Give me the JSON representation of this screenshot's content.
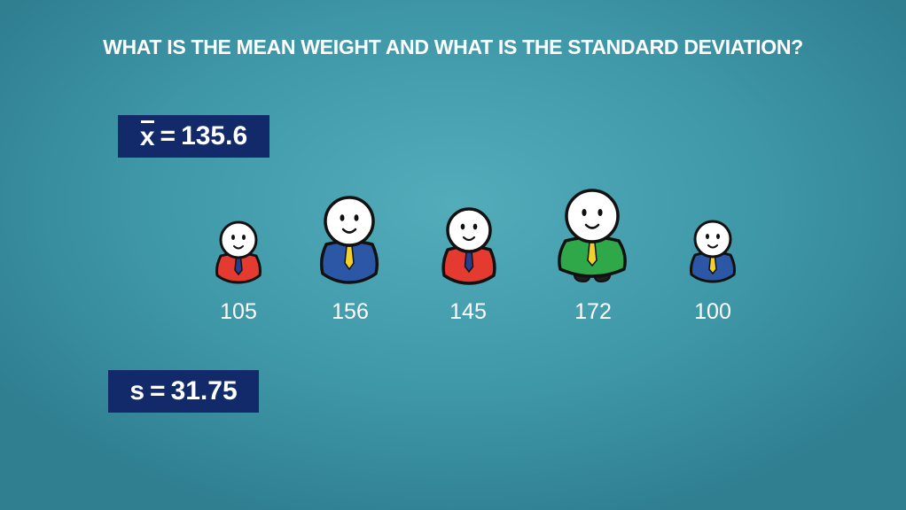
{
  "title": "WHAT IS THE MEAN WEIGHT AND WHAT IS THE STANDARD DEVIATION?",
  "mean": {
    "symbol": "x",
    "equals": "=",
    "value": "135.6"
  },
  "std_dev": {
    "symbol": "s",
    "equals": "=",
    "value": "31.75"
  },
  "people": [
    {
      "weight": "105",
      "shirt_color": "#e53a2f",
      "tie_color": "#2a3c8c"
    },
    {
      "weight": "156",
      "shirt_color": "#2c57a6",
      "tie_color": "#f2d22a"
    },
    {
      "weight": "145",
      "shirt_color": "#e53a2f",
      "tie_color": "#2a3c8c"
    },
    {
      "weight": "172",
      "shirt_color": "#2fa84a",
      "tie_color": "#f2d22a"
    },
    {
      "weight": "100",
      "shirt_color": "#2c57a6",
      "tie_color": "#f2d22a"
    }
  ]
}
